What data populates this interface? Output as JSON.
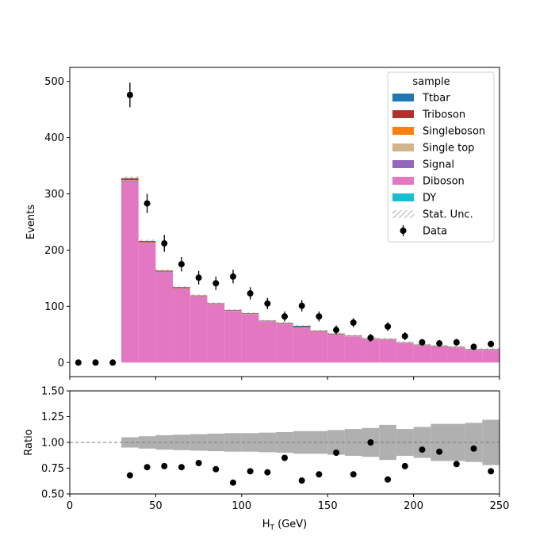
{
  "chart_data": [
    {
      "type": "bar",
      "stacked": true,
      "panel": "main",
      "ylabel": "Events",
      "ylim": [
        -25,
        525
      ],
      "xlim": [
        0,
        250
      ],
      "yticks": [
        0,
        100,
        200,
        300,
        400,
        500
      ],
      "bin_edges": [
        30,
        40,
        50,
        60,
        70,
        80,
        90,
        100,
        110,
        120,
        130,
        140,
        150,
        160,
        170,
        180,
        190,
        200,
        210,
        220,
        230,
        240,
        250
      ],
      "series": [
        {
          "name": "Diboson",
          "color": "#e377c2",
          "values": [
            321,
            212,
            160,
            131,
            117,
            103,
            91,
            85,
            72,
            68,
            61,
            54,
            49,
            46,
            41,
            40,
            34,
            30,
            28,
            26,
            22,
            22
          ]
        },
        {
          "name": "Signal",
          "color": "#9467bd",
          "values": [
            2,
            1,
            1,
            0.5,
            0.5,
            0.5,
            0.5,
            0.5,
            0.5,
            0.5,
            0.5,
            0.5,
            0.5,
            0.5,
            0.5,
            0.5,
            0.5,
            0.5,
            0.5,
            0.5,
            0.5,
            0.5
          ]
        },
        {
          "name": "Single top",
          "color": "#d2b48c",
          "values": [
            1,
            0.5,
            0.5,
            0.5,
            0.5,
            0.5,
            0.5,
            0.5,
            0.5,
            0.5,
            0.5,
            0.5,
            0.5,
            0.5,
            0.5,
            0.5,
            0.5,
            0.5,
            0.5,
            0.5,
            0.5,
            0.5
          ]
        },
        {
          "name": "Singleboson",
          "color": "#ff7f0e",
          "values": [
            0.5,
            0.5,
            0.3,
            0.3,
            0.3,
            0.3,
            0.3,
            0.3,
            0.3,
            0.3,
            0.3,
            0.3,
            0.3,
            0.3,
            0.3,
            0.3,
            0.3,
            0.3,
            0.3,
            0.3,
            0.3,
            0.3
          ]
        },
        {
          "name": "Triboson",
          "color": "#b03030",
          "values": [
            3,
            2,
            1.5,
            1.5,
            1,
            1,
            1,
            1,
            1,
            1,
            1,
            1,
            1,
            0.5,
            0.5,
            0.5,
            0.5,
            0.5,
            0.5,
            0.5,
            0.5,
            0.5
          ]
        },
        {
          "name": "Ttbar",
          "color": "#1f77b4",
          "values": [
            0.5,
            0.3,
            0.3,
            0.3,
            0.3,
            0.3,
            0.3,
            0.3,
            0.3,
            0.3,
            2,
            0.3,
            0.3,
            0.3,
            0.3,
            0.3,
            0.3,
            0.3,
            0.3,
            0.3,
            0.3,
            0.3
          ]
        }
      ],
      "data_points": {
        "name": "Data",
        "x": [
          5,
          15,
          25,
          35,
          45,
          55,
          65,
          75,
          85,
          95,
          105,
          115,
          125,
          135,
          145,
          155,
          165,
          175,
          185,
          195,
          205,
          215,
          225,
          235,
          245
        ],
        "y": [
          0,
          0,
          0,
          476,
          283,
          212,
          175,
          151,
          141,
          153,
          123,
          105,
          82,
          101,
          82,
          58,
          71,
          44,
          64,
          47,
          36,
          34,
          36,
          28,
          33
        ],
        "err": [
          0,
          0,
          0,
          22,
          17,
          15,
          13,
          12,
          12,
          12,
          11,
          10,
          9,
          10,
          9,
          8,
          8,
          7,
          8,
          7,
          6,
          6,
          6,
          5,
          6
        ]
      },
      "legend": {
        "title": "sample",
        "entries": [
          "Ttbar",
          "Triboson",
          "Singleboson",
          "Single top",
          "Signal",
          "Diboson",
          "DY",
          "Stat. Unc.",
          "Data"
        ],
        "colors": {
          "Ttbar": "#1f77b4",
          "Triboson": "#b03030",
          "Singleboson": "#ff7f0e",
          "Single top": "#d2b48c",
          "Signal": "#9467bd",
          "Diboson": "#e377c2",
          "DY": "#17becf"
        },
        "placement": "top-right"
      }
    },
    {
      "type": "scatter",
      "panel": "ratio",
      "xlabel_main": "H",
      "xlabel_sub": "T",
      "xlabel_unit": " (GeV)",
      "ylabel": "Ratio",
      "xlim": [
        0,
        250
      ],
      "ylim": [
        0.5,
        1.5
      ],
      "xticks": [
        0,
        50,
        100,
        150,
        200,
        250
      ],
      "yticks": [
        "0.50",
        "0.75",
        "1.00",
        "1.25",
        "1.50"
      ],
      "reference_line": 1.0,
      "unc_band": {
        "bin_edges": [
          30,
          40,
          50,
          60,
          70,
          80,
          90,
          100,
          110,
          120,
          130,
          140,
          150,
          160,
          170,
          180,
          190,
          200,
          210,
          220,
          230,
          240,
          250
        ],
        "halfwidth": [
          0.05,
          0.06,
          0.07,
          0.075,
          0.08,
          0.085,
          0.09,
          0.09,
          0.095,
          0.1,
          0.11,
          0.11,
          0.12,
          0.13,
          0.14,
          0.17,
          0.13,
          0.15,
          0.18,
          0.18,
          0.19,
          0.22,
          0.19
        ]
      },
      "points": {
        "x": [
          35,
          45,
          55,
          65,
          75,
          85,
          95,
          105,
          115,
          125,
          135,
          145,
          155,
          165,
          175,
          185,
          195,
          205,
          215,
          225,
          235,
          245
        ],
        "y": [
          0.68,
          0.76,
          0.77,
          0.76,
          0.8,
          0.74,
          0.61,
          0.72,
          0.71,
          0.85,
          0.63,
          0.69,
          0.9,
          0.69,
          1.0,
          0.64,
          0.77,
          0.93,
          0.91,
          0.79,
          0.94,
          0.72
        ]
      },
      "band_color": "#b0b0b0"
    }
  ]
}
